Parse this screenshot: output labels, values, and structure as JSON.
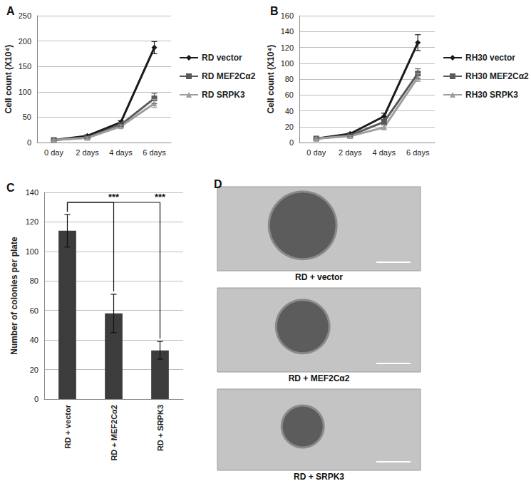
{
  "chart_data": [
    {
      "panel": "A",
      "type": "line",
      "categories": [
        "0 day",
        "2 days",
        "4 days",
        "6 days"
      ],
      "y_label": "Cell count (X10⁴)",
      "ylim": [
        0,
        250
      ],
      "yticks": [
        0,
        50,
        100,
        150,
        200,
        250
      ],
      "grid": true,
      "legend": "right",
      "series": [
        {
          "name": "RD vector",
          "color": "#1a1a1a",
          "marker": "diamond",
          "values": [
            5,
            13,
            40,
            187
          ],
          "errors": [
            1,
            2,
            3,
            12
          ]
        },
        {
          "name": "RD MEF2Cα2",
          "color": "#5a5a5a",
          "marker": "square",
          "values": [
            5,
            10,
            35,
            87
          ],
          "errors": [
            1,
            2,
            3,
            10
          ]
        },
        {
          "name": "RD SRPK3",
          "color": "#9e9e9e",
          "marker": "triangle",
          "values": [
            5,
            9,
            32,
            77
          ],
          "errors": [
            1,
            2,
            3,
            8
          ]
        }
      ]
    },
    {
      "panel": "B",
      "type": "line",
      "categories": [
        "0 day",
        "2 days",
        "4 days",
        "6 days"
      ],
      "y_label": "Cell count (X10⁴)",
      "ylim": [
        0,
        160
      ],
      "yticks": [
        0,
        20,
        40,
        60,
        80,
        100,
        120,
        140,
        160
      ],
      "grid": true,
      "legend": "right",
      "series": [
        {
          "name": "RH30 vector",
          "color": "#1a1a1a",
          "marker": "diamond",
          "values": [
            5,
            11,
            33,
            126
          ],
          "errors": [
            1,
            1,
            4,
            10
          ]
        },
        {
          "name": "RH30 MEF2Cα2",
          "color": "#5a5a5a",
          "marker": "square",
          "values": [
            5,
            9,
            26,
            87
          ],
          "errors": [
            1,
            1,
            3,
            6
          ]
        },
        {
          "name": "RH30 SRPK3",
          "color": "#9e9e9e",
          "marker": "triangle",
          "values": [
            5,
            8,
            19,
            82
          ],
          "errors": [
            1,
            1,
            2,
            5
          ]
        }
      ]
    },
    {
      "panel": "C",
      "type": "bar",
      "categories": [
        "RD + vector",
        "RD + MEF2Cα2",
        "RD + SRPK3"
      ],
      "values": [
        114,
        58,
        33
      ],
      "errors": [
        11,
        13,
        6
      ],
      "color": "#3c3c3c",
      "y_label": "Number of colonies per plate",
      "ylim": [
        0,
        140
      ],
      "yticks": [
        0,
        20,
        40,
        60,
        80,
        100,
        120,
        140
      ],
      "grid": true,
      "annotations": [
        {
          "from": 0,
          "to": 1,
          "label": "***"
        },
        {
          "from": 0,
          "to": 2,
          "label": "***"
        }
      ]
    }
  ],
  "images": {
    "panel": "D",
    "captions": [
      "RD + vector",
      "RD + MEF2Cα2",
      "RD + SRPK3"
    ]
  }
}
